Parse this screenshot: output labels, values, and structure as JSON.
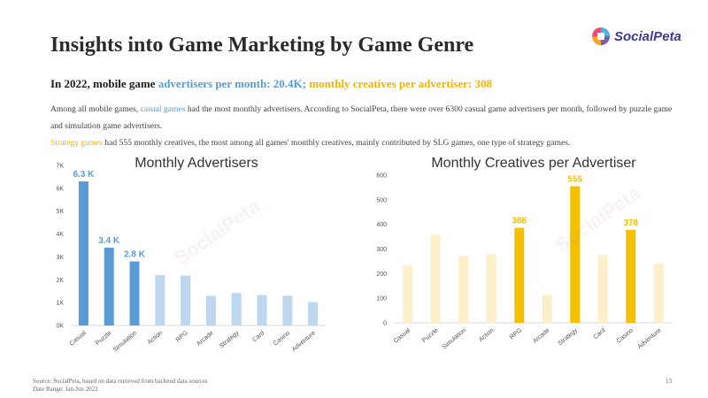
{
  "title": "Insights into Game Marketing by Game Genre",
  "logo": {
    "text": "SocialPeta",
    "watermark": "SocialPeta"
  },
  "headline": {
    "prefix": "In 2022, mobile game ",
    "advertisers": "advertisers per month: 20.4K;",
    "creatives": " monthly creatives per advertiser: 308"
  },
  "paragraph": {
    "p1_pre": "Among all mobile games, ",
    "p1_highlight": "casual games",
    "p1_post": " had the most monthly advertisers. According to SocialPeta, there were over 6300 casual game advertisers per month, followed by puzzle game and simulation game advertisers.",
    "p2_highlight": "Strategy games",
    "p2_post": " had 555 monthly creatives, the most among all games' monthly creatives, mainly contributed by SLG games, one type of strategy games."
  },
  "footer": {
    "source": "Source: SocialPeta, based on data retrieved from backend data sources",
    "date_range": "Date Range: Jan-Jun 2022",
    "page": "13"
  },
  "colors": {
    "blue_strong": "#5b9bd5",
    "blue_light": "#bdd7ee",
    "gold_strong": "#f5c000",
    "gold_light": "#fdefc9"
  },
  "chart_data": [
    {
      "type": "bar",
      "title": "Monthly Advertisers",
      "categories": [
        "Casual",
        "Puzzle",
        "Simulation",
        "Action",
        "RPG",
        "Arcade",
        "Strategy",
        "Card",
        "Casino",
        "Adventure"
      ],
      "values": [
        6300,
        3400,
        2800,
        2200,
        2180,
        1300,
        1420,
        1330,
        1300,
        1020
      ],
      "highlighted": [
        true,
        true,
        true,
        false,
        false,
        false,
        false,
        false,
        false,
        false
      ],
      "data_labels": [
        "6.3 K",
        "3.4 K",
        "2.8 K",
        "",
        "",
        "",
        "",
        "",
        "",
        ""
      ],
      "yticks": [
        "0K",
        "1K",
        "2K",
        "3K",
        "4K",
        "5K",
        "6K",
        "7K"
      ],
      "ylim": [
        0,
        7000
      ],
      "grid": false
    },
    {
      "type": "bar",
      "title": "Monthly Creatives per Advertiser",
      "categories": [
        "Casual",
        "Puzzle",
        "Simulation",
        "Action",
        "RPG",
        "Arcade",
        "Strategy",
        "Card",
        "Casino",
        "Adventure"
      ],
      "values": [
        232,
        358,
        272,
        280,
        386,
        113,
        555,
        275,
        378,
        240
      ],
      "highlighted": [
        false,
        false,
        false,
        false,
        true,
        false,
        true,
        false,
        true,
        false
      ],
      "data_labels": [
        "",
        "",
        "",
        "",
        "386",
        "",
        "555",
        "",
        "378",
        ""
      ],
      "yticks": [
        "0",
        "100",
        "200",
        "300",
        "400",
        "500",
        "600"
      ],
      "ylim": [
        0,
        600
      ],
      "grid": false
    }
  ]
}
